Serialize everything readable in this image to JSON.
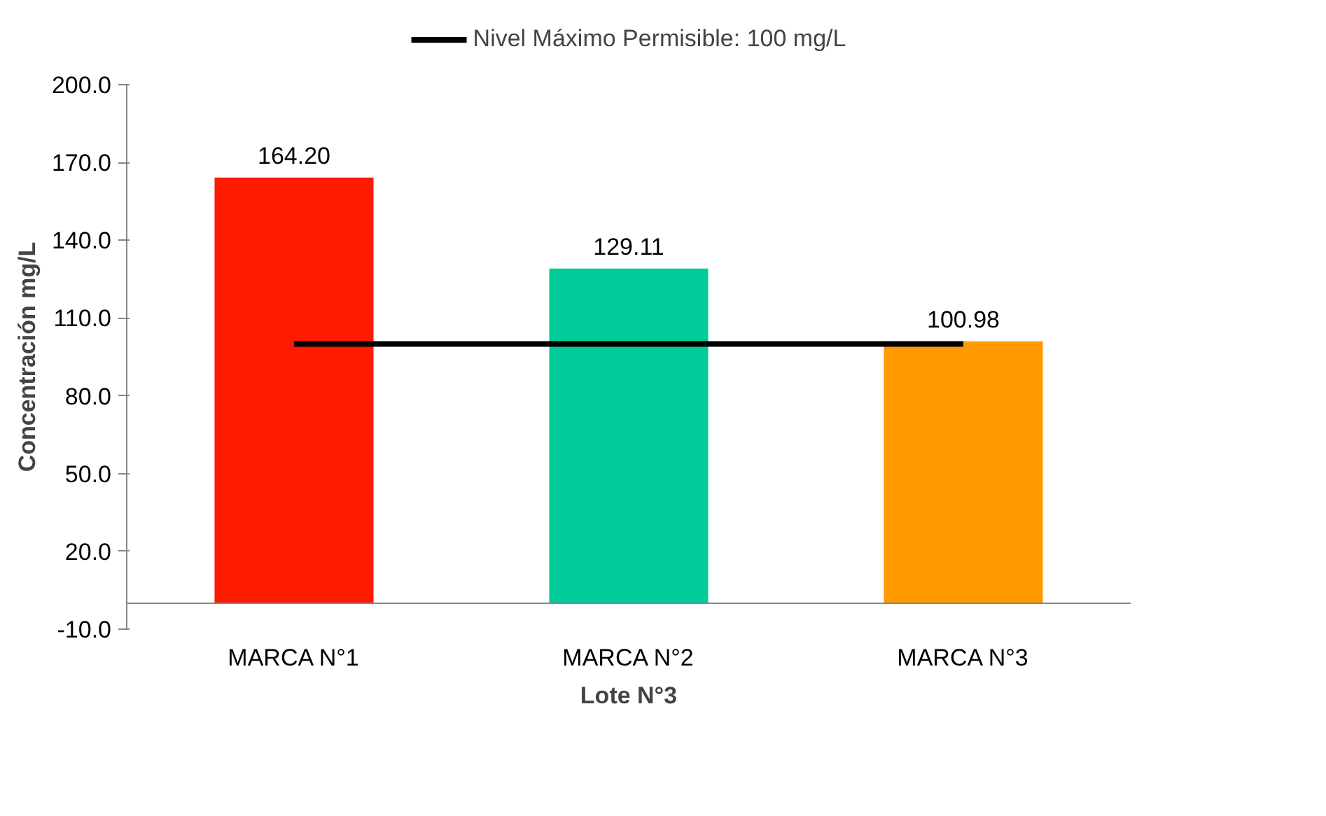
{
  "chart_data": {
    "type": "bar",
    "xlabel": "Lote N°3",
    "ylabel": "Concentración mg/L",
    "categories": [
      "MARCA N°1",
      "MARCA N°2",
      "MARCA N°3"
    ],
    "series": [
      {
        "colors": [
          "#ff1a00",
          "#00cc99",
          "#ff9900"
        ],
        "values": [
          164.2,
          129.11,
          100.98
        ],
        "value_labels": [
          "164.20",
          "129.11",
          "100.98"
        ]
      },
      {
        "type": "line",
        "name": "Nivel Máximo Permisible: 100 mg/L",
        "color": "#000000",
        "values": [
          100,
          100,
          100
        ]
      }
    ],
    "ylim": [
      -10,
      200
    ],
    "yticks": [
      {
        "value": -10,
        "label": "-10.0"
      },
      {
        "value": 20,
        "label": "20.0"
      },
      {
        "value": 50,
        "label": "50.0"
      },
      {
        "value": 80,
        "label": "80.0"
      },
      {
        "value": 110,
        "label": "110.0"
      },
      {
        "value": 140,
        "label": "140.0"
      },
      {
        "value": 170,
        "label": "170.0"
      },
      {
        "value": 200,
        "label": "200.0"
      }
    ],
    "grid": false,
    "legend": "top",
    "line_style": "solid"
  }
}
